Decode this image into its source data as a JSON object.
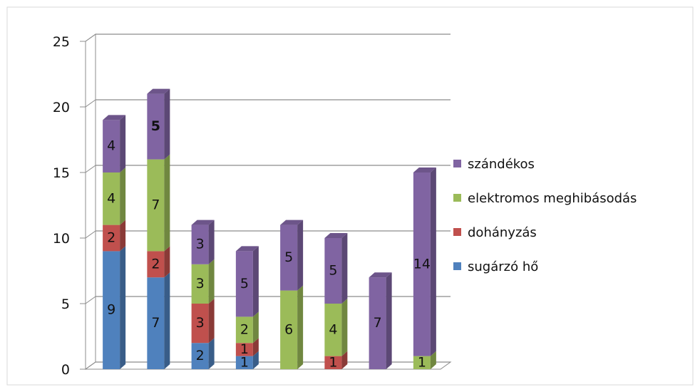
{
  "chart_data": {
    "type": "bar",
    "stacked": true,
    "three_d": true,
    "categories": [
      "",
      "",
      "",
      "",
      "",
      "",
      "",
      ""
    ],
    "series": [
      {
        "name": "sugárzó hő",
        "color": "#4F81BD",
        "values": [
          9,
          7,
          2,
          1,
          0,
          0,
          0,
          0
        ]
      },
      {
        "name": "dohányzás",
        "color": "#C0504D",
        "values": [
          2,
          2,
          3,
          1,
          0,
          1,
          0,
          0
        ]
      },
      {
        "name": "elektromos meghibásodás",
        "color": "#9BBB59",
        "values": [
          4,
          7,
          3,
          2,
          6,
          4,
          0,
          1
        ]
      },
      {
        "name": "szándékos",
        "color": "#8064A2",
        "values": [
          4,
          5,
          3,
          5,
          5,
          5,
          7,
          14
        ]
      }
    ],
    "ylim": [
      0,
      25
    ],
    "yticks": [
      "0",
      "5",
      "10",
      "15",
      "20",
      "25"
    ],
    "grid": true,
    "legend_position": "right",
    "title": "",
    "xlabel": "",
    "ylabel": ""
  }
}
